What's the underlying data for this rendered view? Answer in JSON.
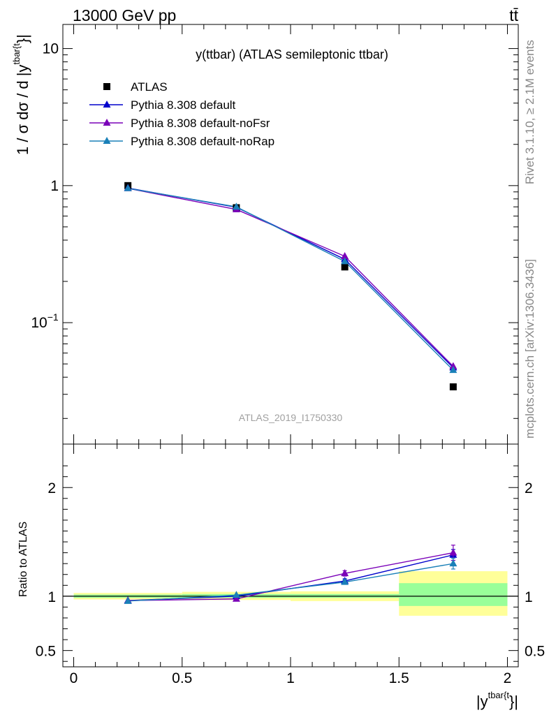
{
  "header": {
    "left": "13000 GeV pp",
    "right": "tt̄"
  },
  "side_labels": {
    "top": "Rivet 3.1.10, ≥ 2.1M events",
    "bottom": "mcplots.cern.ch [arXiv:1306.3436]"
  },
  "plot_title": "y(ttbar) (ATLAS semileptonic ttbar)",
  "watermark": "ATLAS_2019_I1750330",
  "chart_data": [
    {
      "type": "scatter",
      "panel": "main",
      "yscale": "log",
      "ylabel_main": "1 / σ dσ / d |y",
      "ylabel_sup": "tbar{t",
      "ylabel_close": "}|",
      "ylim": [
        0.013,
        15
      ],
      "xlim": [
        -0.05,
        2.05
      ],
      "yticks": [
        {
          "value": 10,
          "label": "10"
        },
        {
          "value": 1,
          "label": "1"
        },
        {
          "value": 0.1,
          "label": "10",
          "exp": "−1"
        }
      ],
      "legend_placement": "top-left",
      "x": [
        0.25,
        0.75,
        1.25,
        1.75
      ],
      "series": [
        {
          "name": "ATLAS",
          "color": "#000000",
          "marker": "square",
          "line": false,
          "values": [
            1.0,
            0.69,
            0.255,
            0.034
          ]
        },
        {
          "name": "Pythia 8.308 default",
          "color": "#0000cc",
          "marker": "triangle",
          "line": true,
          "values": [
            0.96,
            0.695,
            0.29,
            0.047
          ]
        },
        {
          "name": "Pythia 8.308 default-noFsr",
          "color": "#7a00b8",
          "marker": "triangle",
          "line": true,
          "values": [
            0.955,
            0.67,
            0.305,
            0.048
          ]
        },
        {
          "name": "Pythia 8.308 default-noRap",
          "color": "#1a80b8",
          "marker": "triangle",
          "line": true,
          "values": [
            0.955,
            0.7,
            0.28,
            0.045
          ]
        }
      ]
    },
    {
      "type": "scatter",
      "panel": "ratio",
      "ylabel": "Ratio to ATLAS",
      "xlabel_main": "|y",
      "xlabel_sup": "tbar{t",
      "xlabel_close": "}|",
      "ylim": [
        0.35,
        2.4
      ],
      "xlim": [
        -0.05,
        2.05
      ],
      "yticks": [
        {
          "value": 2,
          "label": "2"
        },
        {
          "value": 1,
          "label": "1"
        },
        {
          "value": 0.5,
          "label": "0.5"
        }
      ],
      "xticks": [
        {
          "value": 0,
          "label": "0"
        },
        {
          "value": 0.5,
          "label": "0.5"
        },
        {
          "value": 1,
          "label": "1"
        },
        {
          "value": 1.5,
          "label": "1.5"
        },
        {
          "value": 2,
          "label": "2"
        }
      ],
      "bands": [
        {
          "x": [
            0.0,
            0.5
          ],
          "inner": [
            0.985,
            1.015
          ],
          "outer": [
            0.97,
            1.03
          ]
        },
        {
          "x": [
            0.5,
            1.0
          ],
          "inner": [
            0.985,
            1.02
          ],
          "outer": [
            0.965,
            1.04
          ]
        },
        {
          "x": [
            1.0,
            1.5
          ],
          "inner": [
            0.985,
            1.02
          ],
          "outer": [
            0.955,
            1.045
          ]
        },
        {
          "x": [
            1.5,
            2.0
          ],
          "inner": [
            0.91,
            1.12
          ],
          "outer": [
            0.82,
            1.23
          ]
        }
      ],
      "x": [
        0.25,
        0.75,
        1.25,
        1.75
      ],
      "series": [
        {
          "name": "Pythia 8.308 default",
          "color": "#0000cc",
          "values": [
            0.96,
            1.0,
            1.14,
            1.38
          ],
          "err": [
            0,
            0,
            0.02,
            0.05
          ]
        },
        {
          "name": "Pythia 8.308 default-noFsr",
          "color": "#7a00b8",
          "values": [
            0.96,
            0.975,
            1.21,
            1.4
          ],
          "err": [
            0,
            0,
            0.025,
            0.07
          ]
        },
        {
          "name": "Pythia 8.308 default-noRap",
          "color": "#1a80b8",
          "values": [
            0.955,
            1.01,
            1.13,
            1.3
          ],
          "err": [
            0,
            0,
            0.02,
            0.05
          ]
        }
      ]
    }
  ]
}
